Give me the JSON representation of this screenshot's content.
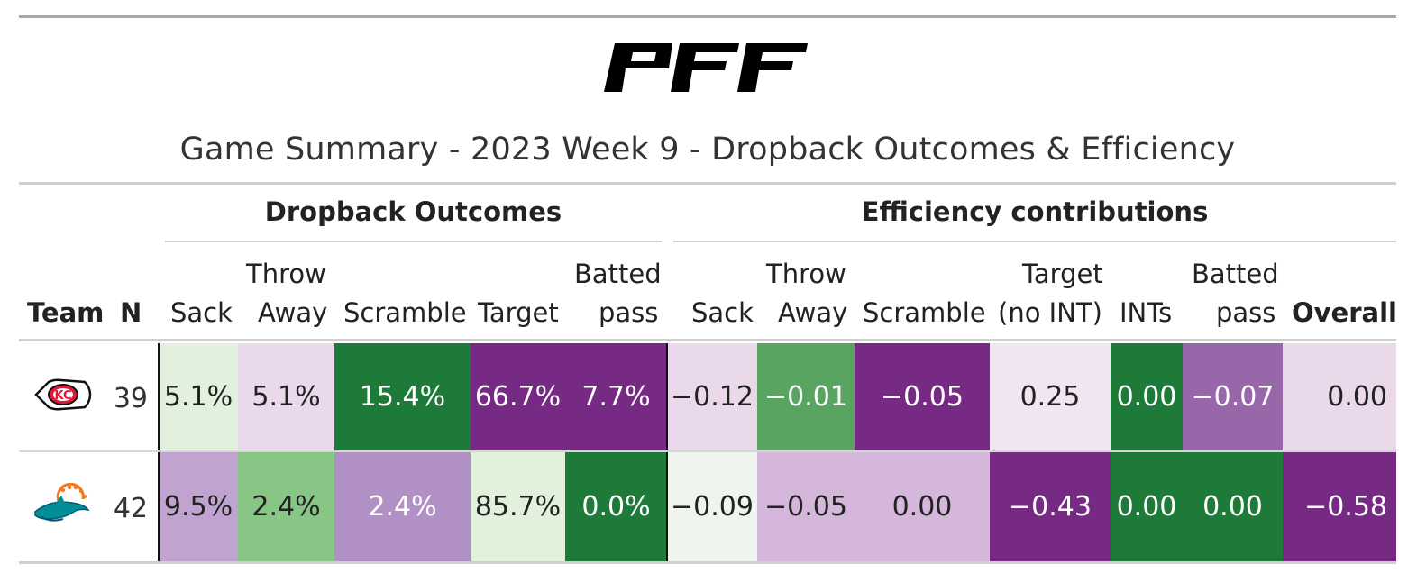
{
  "brand": {
    "logo_text": "PFF"
  },
  "title": "Game Summary - 2023 Week 9 - Dropback Outcomes & Efficiency",
  "spanners": {
    "outcomes": "Dropback Outcomes",
    "efficiency": "Efficiency contributions"
  },
  "headers": {
    "team": "Team",
    "n": "N",
    "sack": "Sack",
    "throw_away_1": "Throw",
    "throw_away_2": "Away",
    "scramble": "Scramble",
    "target": "Target",
    "batted_1": "Batted",
    "batted_2": "pass",
    "eff_sack": "Sack",
    "eff_throw_1": "Throw",
    "eff_throw_2": "Away",
    "eff_scramble": "Scramble",
    "eff_target_1": "Target",
    "eff_target_2": "(no INT)",
    "eff_ints": "INTs",
    "eff_batted_1": "Batted",
    "eff_batted_2": "pass",
    "overall": "Overall"
  },
  "chart_data": {
    "type": "table",
    "title": "Game Summary - 2023 Week 9 - Dropback Outcomes & Efficiency",
    "columns": [
      "Team",
      "N",
      "Sack",
      "Throw Away",
      "Scramble",
      "Target",
      "Batted pass",
      "Sack",
      "Throw Away",
      "Scramble",
      "Target (no INT)",
      "INTs",
      "Batted pass",
      "Overall"
    ],
    "rows": [
      {
        "team_logo": "chiefs-logo-icon",
        "n": "39",
        "outcomes": [
          "5.1%",
          "5.1%",
          "15.4%",
          "66.7%",
          "7.7%"
        ],
        "efficiency": [
          "−0.12",
          "−0.01",
          "−0.05",
          "0.25",
          "0.00",
          "−0.07",
          "0.00"
        ]
      },
      {
        "team_logo": "dolphins-logo-icon",
        "n": "42",
        "outcomes": [
          "9.5%",
          "2.4%",
          "2.4%",
          "85.7%",
          "0.0%"
        ],
        "efficiency": [
          "−0.09",
          "−0.05",
          "0.00",
          "−0.43",
          "0.00",
          "0.00",
          "−0.58"
        ]
      }
    ]
  },
  "colors": {
    "row0_outcomes": [
      "#e2f1de",
      "#ead9ea",
      "#1d7a38",
      "#772a84",
      "#772a84"
    ],
    "row0_efficiency": [
      "#ead9ea",
      "#5aa462",
      "#772a84",
      "#f0e5f0",
      "#1d7a38",
      "#9867aa",
      "#ead9ea"
    ],
    "row1_outcomes": [
      "#c0a3d0",
      "#88c686",
      "#b190c6",
      "#e1f1db",
      "#1d7a38"
    ],
    "row1_efficiency": [
      "#eff5ee",
      "#d6b7dc",
      "#d6b7dc",
      "#772a84",
      "#1d7a38",
      "#1d7a38",
      "#772a84"
    ],
    "row0_text": [
      "#222222",
      "#222222",
      "#ffffff",
      "#ffffff",
      "#ffffff",
      "#222222",
      "#ffffff",
      "#ffffff",
      "#222222",
      "#ffffff",
      "#ffffff",
      "#222222"
    ],
    "row1_text": [
      "#222222",
      "#222222",
      "#ffffff",
      "#222222",
      "#ffffff",
      "#222222",
      "#222222",
      "#222222",
      "#ffffff",
      "#ffffff",
      "#ffffff",
      "#ffffff"
    ]
  }
}
